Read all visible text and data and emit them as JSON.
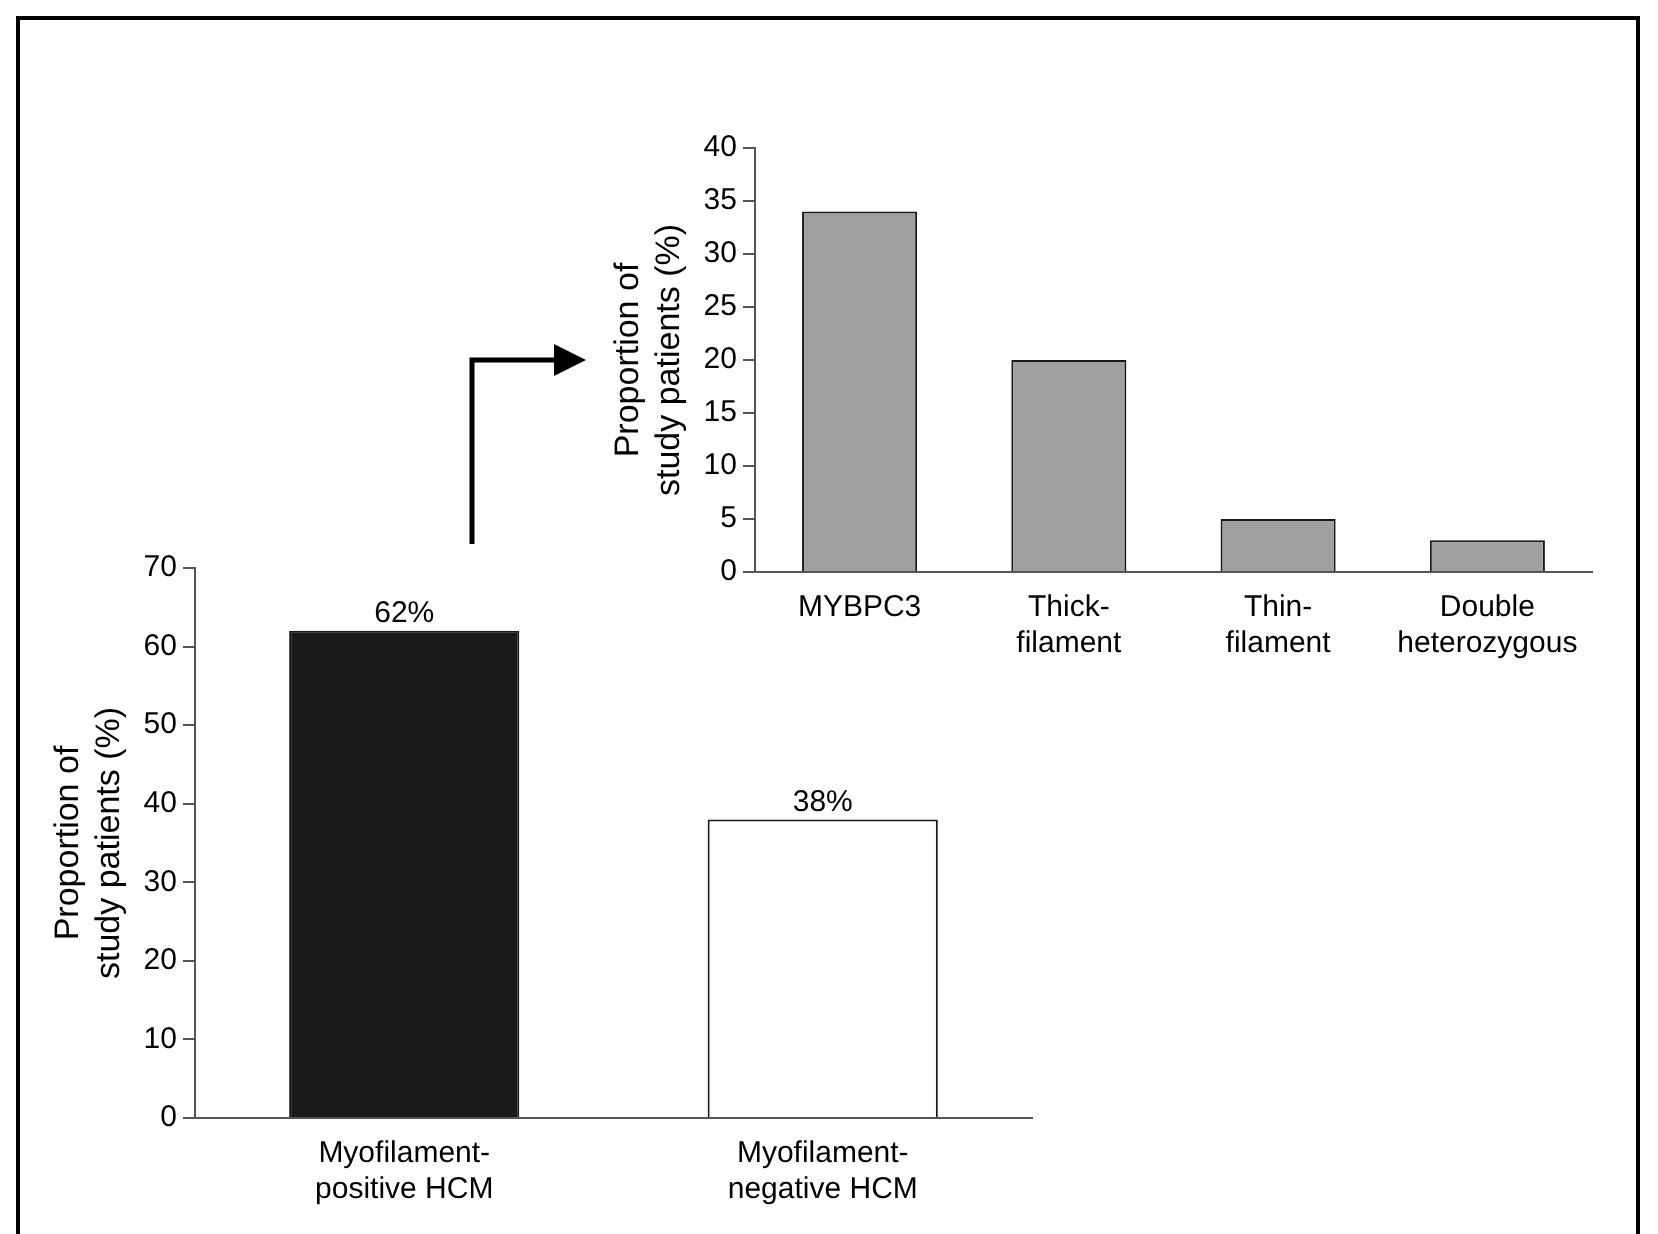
{
  "chart_data": [
    {
      "type": "bar",
      "ylabel": "Proportion of study patients (%)",
      "categories": [
        "Myofilament-positive HCM",
        "Myofilament-negative HCM"
      ],
      "values": [
        62,
        38
      ],
      "colors": [
        "#1a1a1a",
        "#ffffff"
      ],
      "value_labels": [
        "62%",
        "38%"
      ],
      "ylim": [
        0,
        70
      ],
      "yticks": [
        0,
        10,
        20,
        30,
        40,
        50,
        60,
        70
      ],
      "grid": false,
      "legend": false
    },
    {
      "type": "bar",
      "ylabel": "Proportion of study patients (%)",
      "categories": [
        "MYBPC3",
        "Thick-filament",
        "Thin-filament",
        "Double heterozygous"
      ],
      "values": [
        34,
        20,
        5,
        3
      ],
      "color": "#a0a0a0",
      "ylim": [
        0,
        40
      ],
      "yticks": [
        0,
        5,
        10,
        15,
        20,
        25,
        30,
        35,
        40
      ],
      "grid": false,
      "legend": false
    }
  ]
}
